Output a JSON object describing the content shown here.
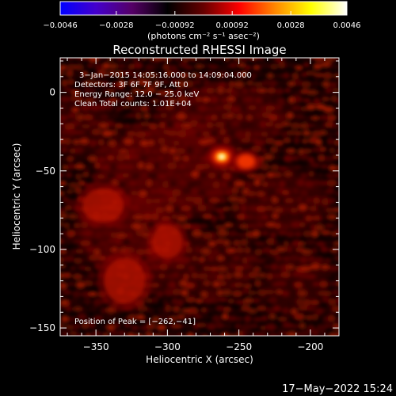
{
  "chart_data": {
    "type": "heatmap",
    "title": "Reconstructed RHESSI Image",
    "xlabel": "Heliocentric X (arcsec)",
    "ylabel": "Heliocentric Y (arcsec)",
    "xlim": [
      -375,
      -180
    ],
    "ylim": [
      -155,
      22
    ],
    "x_ticks": [
      {
        "value": -350,
        "label": "−350"
      },
      {
        "value": -300,
        "label": "−300"
      },
      {
        "value": -250,
        "label": "−250"
      },
      {
        "value": -200,
        "label": "−200"
      }
    ],
    "y_ticks": [
      {
        "value": 0,
        "label": "0"
      },
      {
        "value": -50,
        "label": "−50"
      },
      {
        "value": -100,
        "label": "−100"
      },
      {
        "value": -150,
        "label": "−150"
      }
    ],
    "colorbar": {
      "min": -0.0046,
      "max": 0.0046,
      "units": "(photons cm⁻² s⁻¹ asec⁻²)",
      "ticks": [
        {
          "value": -0.0046,
          "label": "−0.0046"
        },
        {
          "value": -0.0028,
          "label": "−0.0028"
        },
        {
          "value": -0.00092,
          "label": "−0.00092"
        },
        {
          "value": 0.00092,
          "label": "0.00092"
        },
        {
          "value": 0.0028,
          "label": "0.0028"
        },
        {
          "value": 0.0046,
          "label": "0.0046"
        }
      ],
      "colors": [
        "#0000ff",
        "#4400cc",
        "#550066",
        "#000000",
        "#660000",
        "#ff0000",
        "#ff8800",
        "#ffff00",
        "#ffffff"
      ]
    },
    "annotations": [
      "3−Jan−2015 14:05:16.000 to 14:09:04.000",
      "Detectors: 3F 6F 7F 9F, Att 0",
      "Energy Range: 12.0 − 25.0 keV",
      "Clean     Total counts: 1.01E+04"
    ],
    "peak_label": "Position of Peak = [−262,−41]",
    "peak": {
      "x": -262,
      "y": -41
    },
    "sources": [
      {
        "x": -262,
        "y": -41,
        "amp": 1.0,
        "sx": 7,
        "sy": 5
      },
      {
        "x": -245,
        "y": -44,
        "amp": 0.55,
        "sx": 7,
        "sy": 5
      },
      {
        "x": -300,
        "y": -95,
        "amp": 0.35,
        "sx": 9,
        "sy": 9
      },
      {
        "x": -345,
        "y": -72,
        "amp": 0.3,
        "sx": 12,
        "sy": 9
      },
      {
        "x": -330,
        "y": -120,
        "amp": 0.25,
        "sx": 12,
        "sy": 12
      }
    ]
  },
  "footer": {
    "date": "17−May−2022 15:24"
  }
}
